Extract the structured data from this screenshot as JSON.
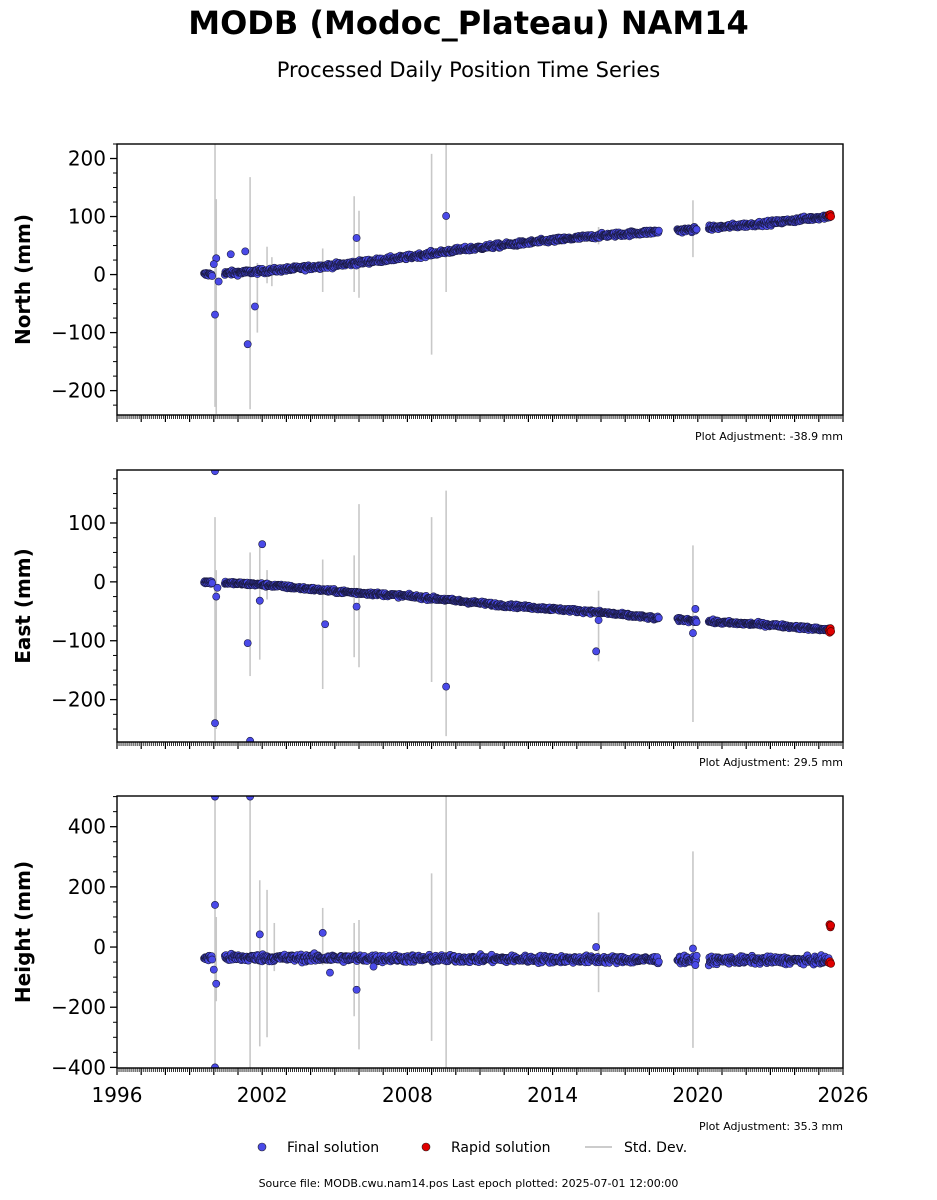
{
  "title": "MODB (Modoc_Plateau) NAM14",
  "subtitle": "Processed Daily Position Time Series",
  "source_line": "Source file: MODB.cwu.nam14.pos  Last epoch plotted: 2025-07-01 12:00:00",
  "legend": {
    "final": "Final solution",
    "rapid": "Rapid solution",
    "stddev": "Std. Dev."
  },
  "colors": {
    "final": "#4a4ae8",
    "rapid": "#e00000",
    "stddev": "#cccccc"
  },
  "chart_data": [
    {
      "type": "scatter",
      "ylabel": "North (mm)",
      "adjustment": "Plot Adjustment: -38.9 mm",
      "xlim": [
        1996,
        2026
      ],
      "ylim": [
        -242,
        225
      ],
      "yticks": [
        -200,
        -100,
        0,
        100,
        200
      ],
      "xticks": [],
      "trend": [
        [
          1999.6,
          0
        ],
        [
          2002.1,
          6
        ],
        [
          2005.0,
          16
        ],
        [
          2008.0,
          30
        ],
        [
          2010.0,
          42
        ],
        [
          2012.0,
          51
        ],
        [
          2014.0,
          59
        ],
        [
          2016.0,
          67
        ],
        [
          2018.3,
          74
        ],
        [
          2019.6,
          77
        ],
        [
          2021.0,
          82
        ],
        [
          2023.0,
          89
        ],
        [
          2025.5,
          101
        ]
      ],
      "gaps": [
        [
          1999.95,
          2000.45
        ],
        [
          2018.4,
          2019.15
        ],
        [
          2019.95,
          2020.45
        ]
      ],
      "scatter": 4,
      "outliers": [
        [
          2000.05,
          -69
        ],
        [
          2000.1,
          28
        ],
        [
          2000.0,
          18
        ],
        [
          2000.2,
          -12
        ],
        [
          2000.7,
          35
        ],
        [
          2001.3,
          40
        ],
        [
          2001.4,
          -120
        ],
        [
          2001.7,
          -55
        ],
        [
          2005.9,
          63
        ],
        [
          2009.6,
          101
        ]
      ],
      "errorbars": [
        [
          2000.05,
          -228,
          225
        ],
        [
          2000.1,
          -240,
          130
        ],
        [
          2001.5,
          -232,
          168
        ],
        [
          2001.8,
          -100,
          20
        ],
        [
          2002.2,
          -15,
          48
        ],
        [
          2002.4,
          -20,
          30
        ],
        [
          2004.5,
          -30,
          45
        ],
        [
          2005.8,
          -30,
          135
        ],
        [
          2006.0,
          -40,
          110
        ],
        [
          2009.0,
          -138,
          208
        ],
        [
          2009.6,
          -30,
          225
        ],
        [
          2015.9,
          52,
          82
        ],
        [
          2019.8,
          30,
          128
        ]
      ],
      "rapid": [
        [
          2025.42,
          103
        ],
        [
          2025.45,
          101
        ],
        [
          2025.48,
          104
        ],
        [
          2025.5,
          100
        ]
      ]
    },
    {
      "type": "scatter",
      "ylabel": "East (mm)",
      "adjustment": "Plot Adjustment: 29.5 mm",
      "xlim": [
        1996,
        2026
      ],
      "ylim": [
        -272,
        190
      ],
      "yticks": [
        -200,
        -100,
        0,
        100
      ],
      "xticks": [],
      "trend": [
        [
          1999.6,
          0
        ],
        [
          2002.1,
          -5
        ],
        [
          2005.0,
          -16
        ],
        [
          2008.0,
          -24
        ],
        [
          2010.0,
          -32
        ],
        [
          2012.0,
          -40
        ],
        [
          2014.0,
          -46
        ],
        [
          2016.0,
          -52
        ],
        [
          2018.3,
          -62
        ],
        [
          2019.6,
          -65
        ],
        [
          2021.0,
          -69
        ],
        [
          2023.0,
          -73
        ],
        [
          2025.5,
          -82
        ]
      ],
      "gaps": [
        [
          1999.95,
          2000.45
        ],
        [
          2018.4,
          2019.15
        ],
        [
          2019.95,
          2020.45
        ]
      ],
      "scatter": 3,
      "outliers": [
        [
          2000.05,
          188
        ],
        [
          2000.05,
          -240
        ],
        [
          2000.1,
          -25
        ],
        [
          2000.15,
          -10
        ],
        [
          2001.4,
          -104
        ],
        [
          2001.5,
          -270
        ],
        [
          2001.9,
          -32
        ],
        [
          2002.0,
          64
        ],
        [
          2004.6,
          -72
        ],
        [
          2005.9,
          -42
        ],
        [
          2009.6,
          -178
        ],
        [
          2015.8,
          -118
        ],
        [
          2015.9,
          -65
        ],
        [
          2019.8,
          -87
        ],
        [
          2019.9,
          -46
        ]
      ],
      "errorbars": [
        [
          2000.05,
          -270,
          110
        ],
        [
          2000.1,
          -250,
          20
        ],
        [
          2001.5,
          -160,
          50
        ],
        [
          2001.9,
          -132,
          62
        ],
        [
          2002.2,
          -30,
          20
        ],
        [
          2004.5,
          -182,
          38
        ],
        [
          2005.8,
          -128,
          45
        ],
        [
          2006.0,
          -145,
          132
        ],
        [
          2009.0,
          -170,
          110
        ],
        [
          2009.6,
          -262,
          155
        ],
        [
          2015.9,
          -135,
          -15
        ],
        [
          2019.8,
          -238,
          62
        ]
      ],
      "rapid": [
        [
          2025.42,
          -82
        ],
        [
          2025.45,
          -86
        ],
        [
          2025.48,
          -79
        ],
        [
          2025.5,
          -84
        ]
      ]
    },
    {
      "type": "scatter",
      "ylabel": "Height (mm)",
      "adjustment": "Plot Adjustment: 35.3 mm",
      "xlim": [
        1996,
        2026
      ],
      "ylim": [
        -402,
        502
      ],
      "yticks": [
        -400,
        -200,
        0,
        200,
        400
      ],
      "xticks": [
        1996,
        2002,
        2008,
        2014,
        2020,
        2026
      ],
      "trend": [
        [
          1999.6,
          -35
        ],
        [
          2025.5,
          -45
        ]
      ],
      "gaps": [
        [
          1999.95,
          2000.45
        ],
        [
          2018.4,
          2019.15
        ],
        [
          2019.95,
          2020.45
        ]
      ],
      "scatter": 12,
      "outliers": [
        [
          2000.05,
          500
        ],
        [
          2000.05,
          140
        ],
        [
          2000.05,
          -400
        ],
        [
          2000.1,
          -122
        ],
        [
          2000.0,
          -75
        ],
        [
          2001.5,
          500
        ],
        [
          2001.9,
          42
        ],
        [
          2004.5,
          47
        ],
        [
          2004.8,
          -85
        ],
        [
          2005.9,
          -142
        ],
        [
          2006.6,
          -65
        ],
        [
          2015.8,
          0
        ],
        [
          2019.8,
          -5
        ],
        [
          2019.9,
          -60
        ]
      ],
      "errorbars": [
        [
          2000.05,
          -402,
          502
        ],
        [
          2000.1,
          -180,
          100
        ],
        [
          2001.5,
          -402,
          502
        ],
        [
          2001.9,
          -330,
          222
        ],
        [
          2002.2,
          -300,
          190
        ],
        [
          2002.5,
          -80,
          80
        ],
        [
          2004.5,
          -60,
          130
        ],
        [
          2005.8,
          -230,
          80
        ],
        [
          2006.0,
          -340,
          90
        ],
        [
          2009.0,
          -312,
          245
        ],
        [
          2009.6,
          -402,
          502
        ],
        [
          2015.9,
          -150,
          115
        ],
        [
          2019.8,
          -335,
          318
        ]
      ],
      "rapid": [
        [
          2025.45,
          75
        ],
        [
          2025.48,
          66
        ],
        [
          2025.5,
          72
        ],
        [
          2025.42,
          -52
        ],
        [
          2025.46,
          -48
        ],
        [
          2025.5,
          -55
        ]
      ]
    }
  ]
}
